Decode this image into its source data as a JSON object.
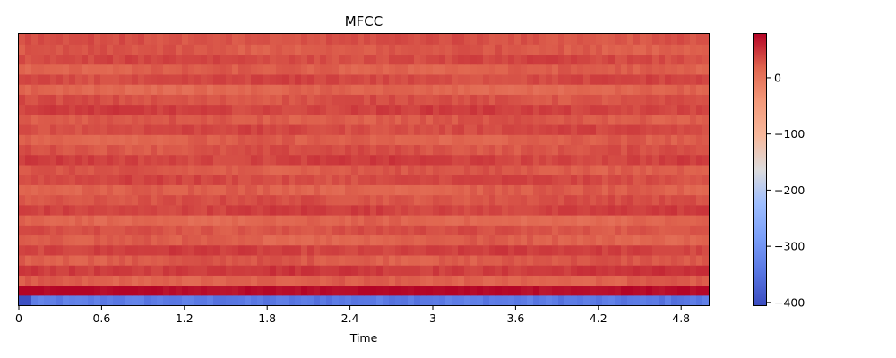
{
  "chart_data": {
    "type": "heatmap",
    "title": "MFCC",
    "xlabel": "Time",
    "ylabel": "",
    "x_ticks": [
      "0",
      "0.6",
      "1.2",
      "1.8",
      "2.4",
      "3",
      "3.6",
      "4.2",
      "4.8"
    ],
    "x_tick_values": [
      0,
      0.6,
      1.2,
      1.8,
      2.4,
      3.0,
      3.6,
      4.2,
      4.8
    ],
    "xlim": [
      0,
      5.0
    ],
    "n_coefficients": 27,
    "coefficient_means": [
      -340,
      75,
      20,
      45,
      25,
      40,
      20,
      30,
      15,
      40,
      30,
      20,
      35,
      25,
      40,
      30,
      20,
      35,
      25,
      40,
      30,
      15,
      35,
      20,
      35,
      25,
      30
    ],
    "colorbar": {
      "colormap": "coolwarm",
      "vmin": -405,
      "vmax": 78,
      "ticks": [
        "0",
        "−100",
        "−200",
        "−300",
        "−400"
      ],
      "tick_values": [
        0,
        -100,
        -200,
        -300,
        -400
      ]
    },
    "grid": false
  }
}
